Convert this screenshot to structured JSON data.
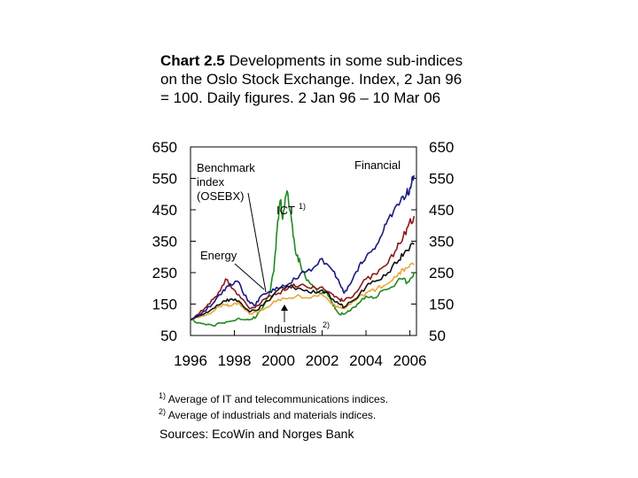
{
  "title": {
    "prefix": "Chart 2.5",
    "text": " Developments in some sub-indices on the Oslo Stock Exchange. Index, 2 Jan 96 = 100. Daily figures. 2 Jan 96 – 10 Mar 06"
  },
  "footnotes": [
    {
      "marker": "1)",
      "text": " Average of IT  and telecommunications indices."
    },
    {
      "marker": "2)",
      "text": " Average of industrials and materials indices."
    }
  ],
  "sources": "Sources: EcoWin and Norges Bank",
  "colors": {
    "financial": "#1a1a80",
    "benchmark": "#111111",
    "ict": "#1f8a1f",
    "energy": "#8b1a1a",
    "industrials": "#e8a838"
  },
  "chart_data": {
    "type": "line",
    "ylim": [
      50,
      650
    ],
    "yticks": [
      50,
      150,
      250,
      350,
      450,
      550,
      650
    ],
    "xlim": [
      1996,
      2006.3
    ],
    "xticks": [
      1996,
      1998,
      2000,
      2002,
      2004,
      2006
    ],
    "grid": false,
    "annotations": [
      {
        "text": "Benchmark index (OSEBX)",
        "series": "benchmark"
      },
      {
        "text": "Financial",
        "series": "financial"
      },
      {
        "text": "ICT",
        "sup": "1)",
        "series": "ict"
      },
      {
        "text": "Energy",
        "series": "energy"
      },
      {
        "text": "Industrials",
        "sup": "2)",
        "series": "industrials"
      }
    ],
    "series": [
      {
        "key": "ict",
        "x": [
          1996.0,
          1996.5,
          1997.0,
          1997.5,
          1997.8,
          1998.2,
          1998.7,
          1999.0,
          1999.3,
          1999.6,
          1999.8,
          1999.95,
          2000.1,
          2000.2,
          2000.4,
          2000.6,
          2000.8,
          2001.0,
          2001.3,
          2001.6,
          2001.9,
          2002.2,
          2002.5,
          2002.75,
          2003.0,
          2003.3,
          2003.6,
          2004.0,
          2004.4,
          2004.8,
          2005.2,
          2005.6,
          2005.9,
          2006.19
        ],
        "y": [
          100,
          88,
          82,
          90,
          95,
          105,
          100,
          110,
          140,
          185,
          255,
          390,
          480,
          420,
          510,
          420,
          310,
          280,
          225,
          205,
          185,
          190,
          145,
          120,
          118,
          130,
          150,
          175,
          170,
          195,
          205,
          230,
          220,
          250
        ]
      },
      {
        "key": "industrials",
        "x": [
          1996.0,
          1996.5,
          1997.0,
          1997.5,
          1997.8,
          1998.2,
          1998.7,
          1999.0,
          1999.5,
          2000.0,
          2000.5,
          2001.0,
          2001.5,
          2002.0,
          2002.5,
          2002.75,
          2003.0,
          2003.5,
          2004.0,
          2004.5,
          2005.0,
          2005.5,
          2005.8,
          2006.19
        ],
        "y": [
          100,
          112,
          125,
          150,
          145,
          155,
          118,
          125,
          140,
          165,
          170,
          175,
          170,
          180,
          150,
          140,
          135,
          160,
          185,
          200,
          215,
          250,
          265,
          275
        ]
      },
      {
        "key": "energy",
        "x": [
          1996.0,
          1996.4,
          1996.8,
          1997.2,
          1997.6,
          1997.8,
          1998.2,
          1998.7,
          1999.0,
          1999.5,
          2000.0,
          2000.5,
          2001.0,
          2001.5,
          2002.0,
          2002.5,
          2002.8,
          2003.0,
          2003.5,
          2004.0,
          2004.5,
          2005.0,
          2005.4,
          2005.7,
          2005.9,
          2006.19
        ],
        "y": [
          100,
          120,
          150,
          175,
          230,
          210,
          180,
          135,
          145,
          170,
          185,
          205,
          210,
          200,
          205,
          180,
          165,
          160,
          185,
          230,
          245,
          280,
          325,
          365,
          395,
          430
        ]
      },
      {
        "key": "benchmark",
        "x": [
          1996.0,
          1996.5,
          1997.0,
          1997.5,
          1997.8,
          1998.2,
          1998.7,
          1999.0,
          1999.5,
          2000.0,
          2000.5,
          2001.0,
          2001.5,
          2002.0,
          2002.5,
          2002.8,
          2003.0,
          2003.5,
          2004.0,
          2004.5,
          2005.0,
          2005.5,
          2005.8,
          2006.19
        ],
        "y": [
          100,
          115,
          135,
          160,
          165,
          160,
          125,
          130,
          160,
          195,
          205,
          200,
          185,
          195,
          165,
          150,
          140,
          165,
          205,
          225,
          250,
          290,
          320,
          340
        ]
      },
      {
        "key": "financial",
        "x": [
          1996.0,
          1996.5,
          1997.0,
          1997.5,
          1997.8,
          1998.2,
          1998.6,
          1998.9,
          1999.2,
          1999.6,
          2000.0,
          2000.5,
          2001.0,
          2001.5,
          2002.0,
          2002.5,
          2002.8,
          2003.0,
          2003.3,
          2003.7,
          2004.0,
          2004.4,
          2004.8,
          2005.1,
          2005.5,
          2005.8,
          2006.0,
          2006.19
        ],
        "y": [
          100,
          120,
          150,
          195,
          215,
          220,
          160,
          145,
          175,
          190,
          200,
          215,
          245,
          255,
          295,
          255,
          215,
          185,
          215,
          275,
          300,
          325,
          385,
          435,
          465,
          490,
          520,
          560
        ]
      }
    ]
  }
}
